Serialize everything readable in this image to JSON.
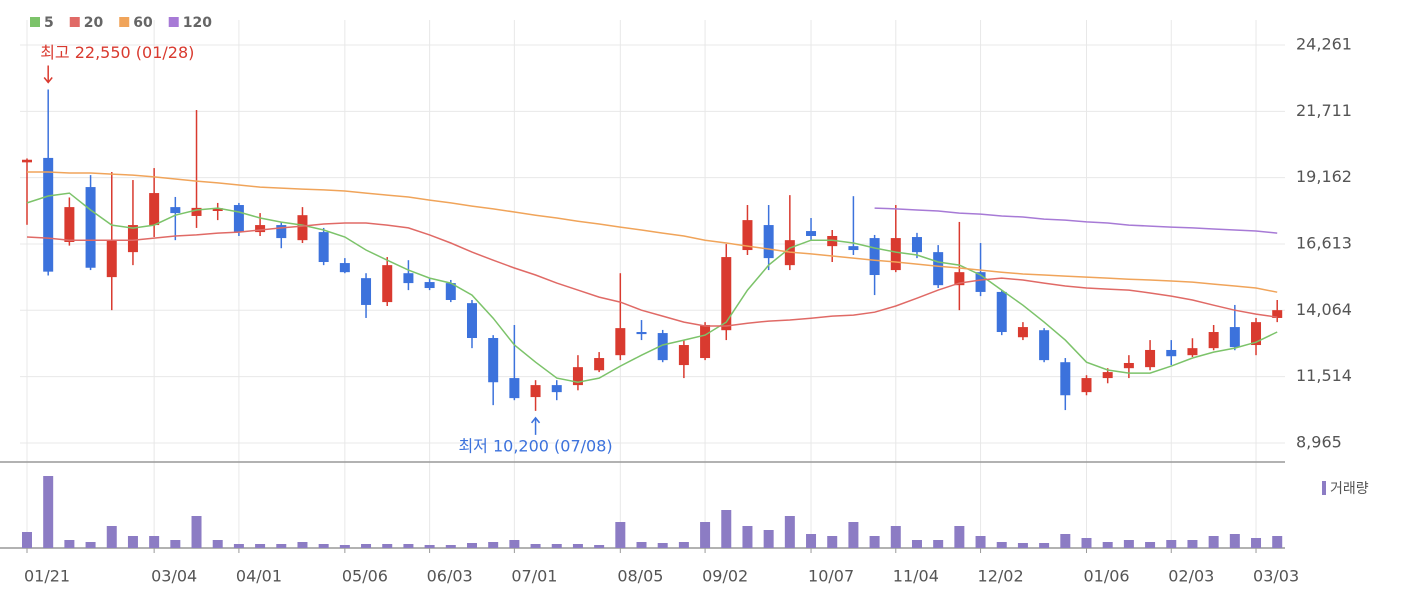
{
  "chart_data": [
    {
      "type": "candlestick",
      "categories": [
        "01/21",
        null,
        null,
        null,
        null,
        null,
        "03/04",
        null,
        null,
        null,
        "04/01",
        null,
        null,
        null,
        null,
        "05/06",
        null,
        null,
        null,
        "06/03",
        null,
        null,
        null,
        "07/01",
        null,
        null,
        null,
        null,
        "08/05",
        null,
        null,
        null,
        "09/02",
        null,
        null,
        null,
        null,
        "10/07",
        null,
        null,
        null,
        "11/04",
        null,
        null,
        null,
        "12/02",
        null,
        null,
        null,
        null,
        "01/06",
        null,
        null,
        null,
        "02/03",
        null,
        null,
        null,
        "03/03",
        null
      ],
      "open": [
        19750,
        19920,
        16690,
        18800,
        15340,
        16300,
        17340,
        18030,
        17690,
        17880,
        18110,
        17070,
        17340,
        16760,
        17070,
        15880,
        15300,
        14380,
        15490,
        15150,
        15110,
        14340,
        13000,
        11460,
        10730,
        11190,
        11190,
        11760,
        12340,
        13230,
        13190,
        11960,
        12230,
        13300,
        16380,
        17340,
        15800,
        17110,
        16530,
        16530,
        16840,
        15610,
        16880,
        16300,
        15030,
        15530,
        14770,
        13030,
        13300,
        12070,
        10920,
        11460,
        11840,
        11880,
        12540,
        12340,
        12610,
        13420,
        12730,
        13770
      ],
      "high": [
        19900,
        22550,
        18400,
        19260,
        19380,
        19070,
        19530,
        18420,
        21760,
        18190,
        18190,
        17800,
        17460,
        18030,
        17230,
        16070,
        15490,
        16110,
        15990,
        15300,
        15230,
        14460,
        13110,
        13500,
        11380,
        11380,
        12340,
        12460,
        15490,
        13690,
        13310,
        12920,
        13610,
        16610,
        18110,
        18110,
        18490,
        17610,
        17150,
        18450,
        16960,
        18110,
        17040,
        16570,
        17460,
        16650,
        14840,
        13610,
        13380,
        12230,
        11570,
        11840,
        12340,
        12920,
        12920,
        12990,
        13500,
        14270,
        13770,
        14460
      ],
      "low": [
        17350,
        15400,
        16550,
        15610,
        14070,
        15800,
        16880,
        16760,
        17230,
        17530,
        16920,
        16920,
        16450,
        16650,
        15800,
        15490,
        13770,
        14230,
        14840,
        14840,
        14380,
        12610,
        10420,
        10610,
        10200,
        10610,
        10990,
        11690,
        12150,
        12920,
        12070,
        11460,
        12150,
        12920,
        16190,
        15610,
        15610,
        16760,
        15920,
        16190,
        14650,
        15530,
        16070,
        14920,
        14070,
        14610,
        13110,
        12920,
        12070,
        10230,
        10800,
        11260,
        11460,
        11760,
        11960,
        12270,
        12530,
        12530,
        12340,
        13610
      ],
      "close": [
        19850,
        15550,
        18030,
        15700,
        16760,
        17340,
        18570,
        17800,
        18000,
        17990,
        17070,
        17340,
        16840,
        17720,
        15920,
        15530,
        14270,
        15800,
        15110,
        14920,
        14460,
        13000,
        11300,
        10690,
        11190,
        10920,
        11880,
        12230,
        13380,
        13150,
        12150,
        12730,
        13500,
        16110,
        17530,
        16070,
        16760,
        16920,
        16920,
        16380,
        15420,
        16840,
        16300,
        15030,
        15530,
        14770,
        13230,
        13420,
        12150,
        10800,
        11460,
        11690,
        12040,
        12540,
        12300,
        12610,
        13230,
        12650,
        13610,
        14070
      ],
      "up_color": "#d93a2f",
      "down_color": "#3c72dc",
      "series": [
        {
          "name": "5",
          "color": "#7cc36a",
          "values": [
            18190,
            18455,
            18570,
            17920,
            17340,
            17225,
            17340,
            17720,
            17920,
            17990,
            17840,
            17610,
            17455,
            17340,
            17150,
            16880,
            16380,
            15990,
            15610,
            15300,
            15110,
            14650,
            13760,
            12730,
            12070,
            11460,
            11300,
            11460,
            11920,
            12340,
            12730,
            12920,
            13110,
            13610,
            14840,
            15800,
            16460,
            16760,
            16760,
            16650,
            16460,
            16300,
            16190,
            15920,
            15800,
            15420,
            14840,
            14260,
            13610,
            12920,
            12070,
            11770,
            11650,
            11650,
            11920,
            12230,
            12460,
            12610,
            12840,
            13230
          ]
        },
        {
          "name": "20",
          "color": "#e06a66",
          "values": [
            16880,
            16840,
            16760,
            16760,
            16760,
            16760,
            16840,
            16920,
            16960,
            17030,
            17070,
            17150,
            17230,
            17300,
            17380,
            17420,
            17420,
            17340,
            17230,
            16960,
            16650,
            16300,
            15990,
            15690,
            15420,
            15110,
            14840,
            14570,
            14380,
            14070,
            13840,
            13610,
            13460,
            13460,
            13570,
            13650,
            13690,
            13760,
            13840,
            13880,
            13990,
            14230,
            14530,
            14840,
            15110,
            15230,
            15300,
            15230,
            15110,
            15000,
            14920,
            14880,
            14840,
            14730,
            14610,
            14460,
            14260,
            14070,
            13920,
            13800
          ]
        },
        {
          "name": "60",
          "color": "#f0a45a",
          "values": [
            19380,
            19380,
            19340,
            19340,
            19300,
            19260,
            19190,
            19110,
            19030,
            18960,
            18880,
            18800,
            18760,
            18720,
            18690,
            18650,
            18570,
            18490,
            18420,
            18300,
            18190,
            18070,
            17960,
            17840,
            17720,
            17610,
            17490,
            17380,
            17260,
            17150,
            17030,
            16920,
            16760,
            16650,
            16530,
            16420,
            16300,
            16230,
            16150,
            16070,
            15990,
            15920,
            15840,
            15760,
            15690,
            15610,
            15530,
            15460,
            15420,
            15380,
            15340,
            15300,
            15260,
            15230,
            15190,
            15150,
            15070,
            15000,
            14920,
            14760
          ]
        },
        {
          "name": "120",
          "color": "#a77ad6",
          "values": [
            null,
            null,
            null,
            null,
            null,
            null,
            null,
            null,
            null,
            null,
            null,
            null,
            null,
            null,
            null,
            null,
            null,
            null,
            null,
            null,
            null,
            null,
            null,
            null,
            null,
            null,
            null,
            null,
            null,
            null,
            null,
            null,
            null,
            null,
            null,
            null,
            null,
            null,
            null,
            null,
            17990,
            17960,
            17920,
            17880,
            17800,
            17760,
            17690,
            17650,
            17570,
            17530,
            17460,
            17420,
            17340,
            17300,
            17260,
            17230,
            17190,
            17150,
            17110,
            17030
          ]
        }
      ],
      "ylim": [
        8235,
        25220
      ],
      "yticks": [
        {
          "value": 24261,
          "label": "24,261"
        },
        {
          "value": 21711,
          "label": "21,711"
        },
        {
          "value": 19162,
          "label": "19,162"
        },
        {
          "value": 16613,
          "label": "16,613"
        },
        {
          "value": 14064,
          "label": "14,064"
        },
        {
          "value": 11514,
          "label": "11,514"
        },
        {
          "value": 8965,
          "label": "8,965"
        }
      ],
      "high_label": "최고 22,550 (01/28)",
      "low_label": "최저 10,200 (07/08)",
      "grid": true
    },
    {
      "type": "bar",
      "series": [
        {
          "name": "거래량",
          "color": "#8c7cc4",
          "values": [
            16,
            72,
            8,
            6,
            22,
            12,
            12,
            8,
            32,
            8,
            4,
            4,
            4,
            6,
            4,
            3,
            4,
            4,
            4,
            3,
            3,
            5,
            6,
            8,
            4,
            4,
            4,
            3,
            26,
            6,
            5,
            6,
            26,
            38,
            22,
            18,
            32,
            14,
            12,
            26,
            12,
            22,
            8,
            8,
            22,
            12,
            6,
            5,
            5,
            14,
            10,
            6,
            8,
            6,
            8,
            8,
            12,
            14,
            10,
            12
          ]
        }
      ],
      "ylim": [
        0,
        86
      ]
    }
  ]
}
